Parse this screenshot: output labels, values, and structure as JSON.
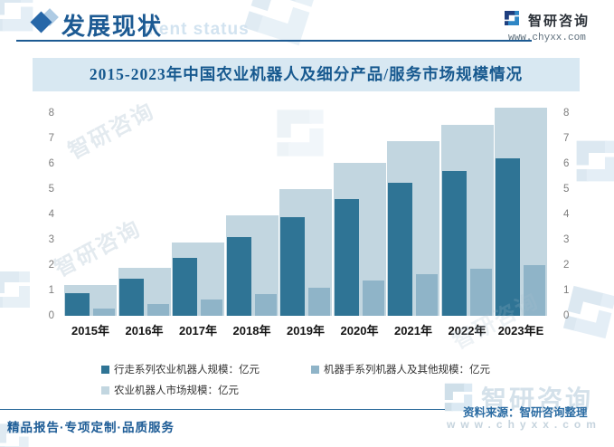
{
  "header": {
    "title": "发展现状",
    "subtitle_visible": "ment status",
    "brand": "智研咨询",
    "website": "www.chyxx.com"
  },
  "chart_data": {
    "type": "bar",
    "title": "2015-2023年中国农业机器人及细分产品/服务市场规模情况",
    "categories": [
      "2015年",
      "2016年",
      "2017年",
      "2018年",
      "2019年",
      "2020年",
      "2021年",
      "2022年",
      "2023年E"
    ],
    "series": [
      {
        "name": "行走系列农业机器人规模：亿元",
        "color": "#2f7495",
        "values": [
          0.9,
          1.45,
          2.3,
          3.1,
          3.9,
          4.6,
          5.25,
          5.7,
          6.2
        ]
      },
      {
        "name": "机器手系列机器人及其他规模：亿元",
        "color": "#8fb4c8",
        "values": [
          0.3,
          0.45,
          0.65,
          0.85,
          1.1,
          1.4,
          1.65,
          1.85,
          2.0
        ]
      },
      {
        "name": "农业机器人市场规模：亿元",
        "color": "#c2d6e0",
        "values": [
          1.2,
          1.9,
          2.9,
          3.95,
          5.0,
          6.05,
          6.9,
          7.55,
          8.2
        ]
      }
    ],
    "unit_label": "亿元",
    "ylim": [
      0,
      8
    ],
    "yticks": [
      0,
      1,
      2,
      3,
      4,
      5,
      6,
      7,
      8
    ],
    "dual_y_axis": true,
    "grid": false,
    "legend_position": "bottom"
  },
  "footer": {
    "services": "精品报告·专项定制·品质服务",
    "source": "资料来源：智研咨询整理",
    "website": "www.chyxx.com"
  },
  "watermark": {
    "text": "智研咨询",
    "site": "www.chyxx.com"
  }
}
